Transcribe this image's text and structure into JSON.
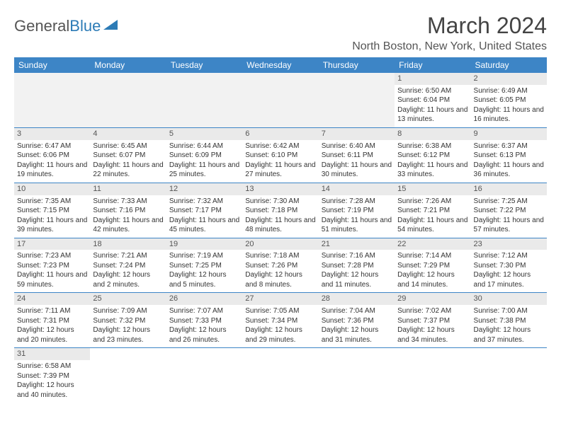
{
  "logo": {
    "text_part1": "General",
    "text_part2": "Blue"
  },
  "header": {
    "month_title": "March 2024",
    "location": "North Boston, New York, United States"
  },
  "colors": {
    "header_bg": "#3d85c6",
    "header_text": "#ffffff",
    "daynum_bg": "#eaeaea",
    "empty_bg": "#f2f2f2",
    "row_border": "#3d85c6",
    "text": "#333333",
    "title_text": "#444444"
  },
  "weekdays": [
    "Sunday",
    "Monday",
    "Tuesday",
    "Wednesday",
    "Thursday",
    "Friday",
    "Saturday"
  ],
  "weeks": [
    [
      null,
      null,
      null,
      null,
      null,
      {
        "day": "1",
        "sunrise": "Sunrise: 6:50 AM",
        "sunset": "Sunset: 6:04 PM",
        "daylight": "Daylight: 11 hours and 13 minutes."
      },
      {
        "day": "2",
        "sunrise": "Sunrise: 6:49 AM",
        "sunset": "Sunset: 6:05 PM",
        "daylight": "Daylight: 11 hours and 16 minutes."
      }
    ],
    [
      {
        "day": "3",
        "sunrise": "Sunrise: 6:47 AM",
        "sunset": "Sunset: 6:06 PM",
        "daylight": "Daylight: 11 hours and 19 minutes."
      },
      {
        "day": "4",
        "sunrise": "Sunrise: 6:45 AM",
        "sunset": "Sunset: 6:07 PM",
        "daylight": "Daylight: 11 hours and 22 minutes."
      },
      {
        "day": "5",
        "sunrise": "Sunrise: 6:44 AM",
        "sunset": "Sunset: 6:09 PM",
        "daylight": "Daylight: 11 hours and 25 minutes."
      },
      {
        "day": "6",
        "sunrise": "Sunrise: 6:42 AM",
        "sunset": "Sunset: 6:10 PM",
        "daylight": "Daylight: 11 hours and 27 minutes."
      },
      {
        "day": "7",
        "sunrise": "Sunrise: 6:40 AM",
        "sunset": "Sunset: 6:11 PM",
        "daylight": "Daylight: 11 hours and 30 minutes."
      },
      {
        "day": "8",
        "sunrise": "Sunrise: 6:38 AM",
        "sunset": "Sunset: 6:12 PM",
        "daylight": "Daylight: 11 hours and 33 minutes."
      },
      {
        "day": "9",
        "sunrise": "Sunrise: 6:37 AM",
        "sunset": "Sunset: 6:13 PM",
        "daylight": "Daylight: 11 hours and 36 minutes."
      }
    ],
    [
      {
        "day": "10",
        "sunrise": "Sunrise: 7:35 AM",
        "sunset": "Sunset: 7:15 PM",
        "daylight": "Daylight: 11 hours and 39 minutes."
      },
      {
        "day": "11",
        "sunrise": "Sunrise: 7:33 AM",
        "sunset": "Sunset: 7:16 PM",
        "daylight": "Daylight: 11 hours and 42 minutes."
      },
      {
        "day": "12",
        "sunrise": "Sunrise: 7:32 AM",
        "sunset": "Sunset: 7:17 PM",
        "daylight": "Daylight: 11 hours and 45 minutes."
      },
      {
        "day": "13",
        "sunrise": "Sunrise: 7:30 AM",
        "sunset": "Sunset: 7:18 PM",
        "daylight": "Daylight: 11 hours and 48 minutes."
      },
      {
        "day": "14",
        "sunrise": "Sunrise: 7:28 AM",
        "sunset": "Sunset: 7:19 PM",
        "daylight": "Daylight: 11 hours and 51 minutes."
      },
      {
        "day": "15",
        "sunrise": "Sunrise: 7:26 AM",
        "sunset": "Sunset: 7:21 PM",
        "daylight": "Daylight: 11 hours and 54 minutes."
      },
      {
        "day": "16",
        "sunrise": "Sunrise: 7:25 AM",
        "sunset": "Sunset: 7:22 PM",
        "daylight": "Daylight: 11 hours and 57 minutes."
      }
    ],
    [
      {
        "day": "17",
        "sunrise": "Sunrise: 7:23 AM",
        "sunset": "Sunset: 7:23 PM",
        "daylight": "Daylight: 11 hours and 59 minutes."
      },
      {
        "day": "18",
        "sunrise": "Sunrise: 7:21 AM",
        "sunset": "Sunset: 7:24 PM",
        "daylight": "Daylight: 12 hours and 2 minutes."
      },
      {
        "day": "19",
        "sunrise": "Sunrise: 7:19 AM",
        "sunset": "Sunset: 7:25 PM",
        "daylight": "Daylight: 12 hours and 5 minutes."
      },
      {
        "day": "20",
        "sunrise": "Sunrise: 7:18 AM",
        "sunset": "Sunset: 7:26 PM",
        "daylight": "Daylight: 12 hours and 8 minutes."
      },
      {
        "day": "21",
        "sunrise": "Sunrise: 7:16 AM",
        "sunset": "Sunset: 7:28 PM",
        "daylight": "Daylight: 12 hours and 11 minutes."
      },
      {
        "day": "22",
        "sunrise": "Sunrise: 7:14 AM",
        "sunset": "Sunset: 7:29 PM",
        "daylight": "Daylight: 12 hours and 14 minutes."
      },
      {
        "day": "23",
        "sunrise": "Sunrise: 7:12 AM",
        "sunset": "Sunset: 7:30 PM",
        "daylight": "Daylight: 12 hours and 17 minutes."
      }
    ],
    [
      {
        "day": "24",
        "sunrise": "Sunrise: 7:11 AM",
        "sunset": "Sunset: 7:31 PM",
        "daylight": "Daylight: 12 hours and 20 minutes."
      },
      {
        "day": "25",
        "sunrise": "Sunrise: 7:09 AM",
        "sunset": "Sunset: 7:32 PM",
        "daylight": "Daylight: 12 hours and 23 minutes."
      },
      {
        "day": "26",
        "sunrise": "Sunrise: 7:07 AM",
        "sunset": "Sunset: 7:33 PM",
        "daylight": "Daylight: 12 hours and 26 minutes."
      },
      {
        "day": "27",
        "sunrise": "Sunrise: 7:05 AM",
        "sunset": "Sunset: 7:34 PM",
        "daylight": "Daylight: 12 hours and 29 minutes."
      },
      {
        "day": "28",
        "sunrise": "Sunrise: 7:04 AM",
        "sunset": "Sunset: 7:36 PM",
        "daylight": "Daylight: 12 hours and 31 minutes."
      },
      {
        "day": "29",
        "sunrise": "Sunrise: 7:02 AM",
        "sunset": "Sunset: 7:37 PM",
        "daylight": "Daylight: 12 hours and 34 minutes."
      },
      {
        "day": "30",
        "sunrise": "Sunrise: 7:00 AM",
        "sunset": "Sunset: 7:38 PM",
        "daylight": "Daylight: 12 hours and 37 minutes."
      }
    ],
    [
      {
        "day": "31",
        "sunrise": "Sunrise: 6:58 AM",
        "sunset": "Sunset: 7:39 PM",
        "daylight": "Daylight: 12 hours and 40 minutes."
      },
      null,
      null,
      null,
      null,
      null,
      null
    ]
  ]
}
